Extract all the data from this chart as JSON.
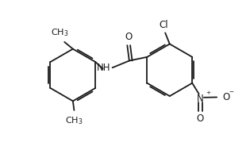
{
  "bg_color": "#ffffff",
  "line_color": "#1a1a1a",
  "line_width": 1.3,
  "font_size": 8.5,
  "figsize": [
    3.15,
    1.89
  ],
  "dpi": 100,
  "xlim": [
    0,
    10
  ],
  "ylim": [
    0,
    6
  ]
}
